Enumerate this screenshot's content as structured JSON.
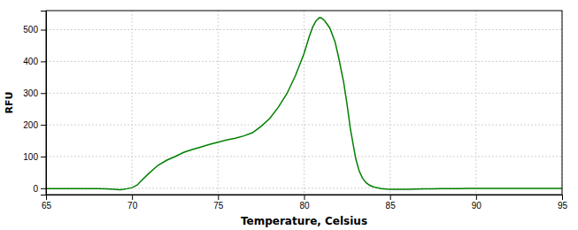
{
  "chart_data": {
    "type": "line",
    "xlabel": "Temperature, Celsius",
    "ylabel": "RFU",
    "color": "#008000",
    "grid": true,
    "xlim": [
      65,
      95
    ],
    "ylim": [
      -20,
      560
    ],
    "xticks": [
      65,
      70,
      75,
      80,
      85,
      90,
      95
    ],
    "yticks": [
      0,
      100,
      200,
      300,
      400,
      500
    ],
    "x": [
      65.0,
      65.5,
      66.0,
      66.5,
      67.0,
      67.5,
      68.0,
      68.5,
      69.0,
      69.3,
      69.5,
      69.7,
      70.0,
      70.3,
      70.5,
      71.0,
      71.5,
      72.0,
      72.5,
      73.0,
      73.5,
      74.0,
      74.5,
      75.0,
      75.5,
      76.0,
      76.5,
      77.0,
      77.5,
      78.0,
      78.5,
      79.0,
      79.5,
      80.0,
      80.3,
      80.5,
      80.7,
      80.9,
      81.0,
      81.2,
      81.5,
      81.8,
      82.0,
      82.3,
      82.5,
      82.7,
      83.0,
      83.2,
      83.4,
      83.6,
      83.8,
      84.0,
      84.2,
      84.5,
      84.8,
      85.0,
      85.5,
      86.0,
      86.5,
      87.0,
      87.5,
      88.0,
      88.5,
      89.0,
      89.5,
      90.0,
      90.5,
      91.0,
      91.5,
      92.0,
      92.5,
      93.0,
      93.5,
      94.0,
      94.5,
      95.0
    ],
    "values": [
      -1.0,
      -1.0,
      -1.0,
      -1.0,
      -1.0,
      -1.0,
      -1.5,
      -2.0,
      -3.0,
      -4.5,
      -3.5,
      -1.5,
      2.0,
      10.0,
      22.0,
      48.0,
      72.0,
      88.0,
      100.0,
      113.0,
      122.0,
      130.0,
      138.0,
      145.0,
      152.0,
      158.0,
      165.0,
      175.0,
      195.0,
      220.0,
      255.0,
      298.0,
      355.0,
      425.0,
      478.0,
      508.0,
      528.0,
      538.0,
      537.0,
      528.0,
      505.0,
      462.0,
      415.0,
      335.0,
      265.0,
      185.0,
      95.0,
      55.0,
      32.0,
      18.0,
      10.0,
      5.0,
      2.0,
      -1.0,
      -2.5,
      -3.0,
      -3.5,
      -3.0,
      -2.5,
      -2.0,
      -1.8,
      -1.5,
      -1.2,
      -1.0,
      -0.8,
      -0.8,
      -0.7,
      -0.7,
      -0.5,
      -0.5,
      -0.5,
      -0.5,
      -0.5,
      -0.5,
      -0.5,
      -0.5
    ]
  }
}
